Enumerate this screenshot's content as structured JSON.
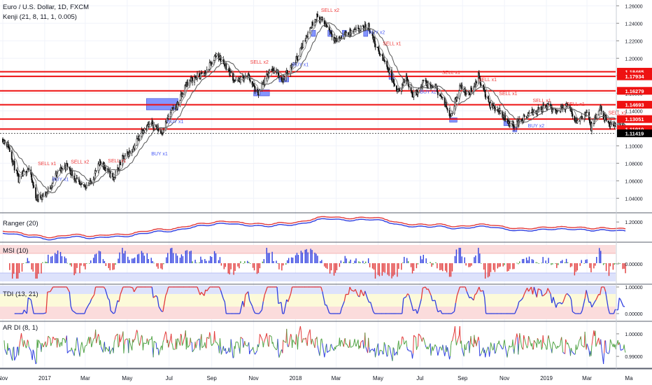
{
  "title": "Euro / U.S. Dollar, 1D, FXCM",
  "indicator_label": "Kenji (21, 8, 11, 1, 0.005)",
  "colors": {
    "candle": "#111111",
    "ma": "#555555",
    "level": "#ee1111",
    "sell": "#ef3b3b",
    "buy": "#4a5cf5",
    "box": "#6f83ff",
    "blue": "#2f3fe0",
    "red": "#e23a3a",
    "green": "#52a447",
    "grid": "#f0f3fa",
    "band_red": "#fbdcdc",
    "band_blue": "#dde2fb",
    "band_yellow": "#fcfad9"
  },
  "chart_data": [
    {
      "type": "candlestick",
      "name": "Euro / U.S. Dollar",
      "x_range": [
        "2016-11-01",
        "2019-04-30"
      ],
      "ylim": [
        1.025,
        1.265
      ],
      "y_ticks": [
        {
          "value": 1.26,
          "label": "1.26000"
        },
        {
          "value": 1.24,
          "label": "1.24000"
        },
        {
          "value": 1.22,
          "label": "1.22000"
        },
        {
          "value": 1.2,
          "label": "1.20000"
        },
        {
          "value": 1.18,
          "label": "1.18000"
        },
        {
          "value": 1.16,
          "label": "1.16000"
        },
        {
          "value": 1.14,
          "label": "1.14000"
        },
        {
          "value": 1.12,
          "label": "1.12000"
        },
        {
          "value": 1.1,
          "label": "1.10000"
        },
        {
          "value": 1.08,
          "label": "1.08000"
        },
        {
          "value": 1.06,
          "label": "1.06000"
        },
        {
          "value": 1.04,
          "label": "1.04000"
        }
      ],
      "levels": [
        {
          "value": 1.18465,
          "label": "1.18465"
        },
        {
          "value": 1.17934,
          "label": "1.17934"
        },
        {
          "value": 1.16279,
          "label": "1.16279"
        },
        {
          "value": 1.14693,
          "label": "1.14693"
        },
        {
          "value": 1.13051,
          "label": "1.13051"
        },
        {
          "value": 1.1191,
          "label": "1.11910"
        }
      ],
      "last_price": {
        "value": 1.11419,
        "label": "1.11419"
      },
      "close_path": [
        [
          "2016-11-01",
          1.108
        ],
        [
          "2016-11-09",
          1.1
        ],
        [
          "2016-11-24",
          1.06
        ],
        [
          "2016-12-08",
          1.075
        ],
        [
          "2016-12-20",
          1.04
        ],
        [
          "2017-01-03",
          1.045
        ],
        [
          "2017-01-20",
          1.07
        ],
        [
          "2017-02-02",
          1.078
        ],
        [
          "2017-02-22",
          1.053
        ],
        [
          "2017-03-08",
          1.057
        ],
        [
          "2017-03-24",
          1.082
        ],
        [
          "2017-04-11",
          1.062
        ],
        [
          "2017-04-24",
          1.085
        ],
        [
          "2017-05-08",
          1.095
        ],
        [
          "2017-05-24",
          1.12
        ],
        [
          "2017-06-07",
          1.125
        ],
        [
          "2017-06-20",
          1.115
        ],
        [
          "2017-07-03",
          1.138
        ],
        [
          "2017-07-14",
          1.148
        ],
        [
          "2017-07-27",
          1.172
        ],
        [
          "2017-08-08",
          1.178
        ],
        [
          "2017-08-23",
          1.183
        ],
        [
          "2017-09-08",
          1.205
        ],
        [
          "2017-09-21",
          1.192
        ],
        [
          "2017-10-06",
          1.173
        ],
        [
          "2017-10-24",
          1.18
        ],
        [
          "2017-11-07",
          1.158
        ],
        [
          "2017-11-27",
          1.19
        ],
        [
          "2017-12-13",
          1.176
        ],
        [
          "2018-01-03",
          1.2
        ],
        [
          "2018-01-16",
          1.225
        ],
        [
          "2018-01-31",
          1.248
        ],
        [
          "2018-02-15",
          1.238
        ],
        [
          "2018-03-01",
          1.22
        ],
        [
          "2018-03-16",
          1.228
        ],
        [
          "2018-04-02",
          1.232
        ],
        [
          "2018-04-17",
          1.237
        ],
        [
          "2018-04-30",
          1.21
        ],
        [
          "2018-05-15",
          1.19
        ],
        [
          "2018-05-29",
          1.16
        ],
        [
          "2018-06-11",
          1.178
        ],
        [
          "2018-06-21",
          1.157
        ],
        [
          "2018-07-06",
          1.172
        ],
        [
          "2018-07-25",
          1.165
        ],
        [
          "2018-08-15",
          1.135
        ],
        [
          "2018-08-28",
          1.168
        ],
        [
          "2018-09-10",
          1.158
        ],
        [
          "2018-09-24",
          1.18
        ],
        [
          "2018-10-09",
          1.148
        ],
        [
          "2018-10-24",
          1.14
        ],
        [
          "2018-11-12",
          1.123
        ],
        [
          "2018-11-27",
          1.13
        ],
        [
          "2018-12-12",
          1.138
        ],
        [
          "2019-01-02",
          1.145
        ],
        [
          "2019-01-16",
          1.14
        ],
        [
          "2019-01-31",
          1.146
        ],
        [
          "2019-02-14",
          1.128
        ],
        [
          "2019-03-01",
          1.138
        ],
        [
          "2019-03-07",
          1.12
        ],
        [
          "2019-03-20",
          1.143
        ],
        [
          "2019-04-02",
          1.122
        ],
        [
          "2019-04-17",
          1.128
        ],
        [
          "2019-04-26",
          1.115
        ]
      ],
      "zones": [
        {
          "x0": "2017-05-29",
          "x1": "2017-07-14",
          "y0": 1.141,
          "y1": 1.154
        },
        {
          "x0": "2017-11-01",
          "x1": "2017-11-24",
          "y0": 1.157,
          "y1": 1.164
        },
        {
          "x0": "2017-12-08",
          "x1": "2017-12-22",
          "y0": 1.173,
          "y1": 1.179
        },
        {
          "x0": "2018-01-24",
          "x1": "2018-01-30",
          "y0": 1.225,
          "y1": 1.232
        },
        {
          "x0": "2018-02-17",
          "x1": "2018-02-23",
          "y0": 1.225,
          "y1": 1.232
        },
        {
          "x0": "2018-03-10",
          "x1": "2018-03-16",
          "y0": 1.225,
          "y1": 1.232
        },
        {
          "x0": "2018-04-10",
          "x1": "2018-04-16",
          "y0": 1.225,
          "y1": 1.232
        },
        {
          "x0": "2018-05-17",
          "x1": "2018-05-24",
          "y0": 1.176,
          "y1": 1.182
        },
        {
          "x0": "2018-08-13",
          "x1": "2018-08-24",
          "y0": 1.127,
          "y1": 1.132
        },
        {
          "x0": "2018-10-31",
          "x1": "2018-11-07",
          "y0": 1.123,
          "y1": 1.128
        },
        {
          "x0": "2018-11-13",
          "x1": "2018-11-19",
          "y0": 1.116,
          "y1": 1.121
        }
      ],
      "signals": [
        {
          "x": "2016-12-22",
          "y": 1.078,
          "text": "SELL x1",
          "side": "sell"
        },
        {
          "x": "2017-02-08",
          "y": 1.08,
          "text": "SELL x2",
          "side": "sell"
        },
        {
          "x": "2017-01-12",
          "y": 1.06,
          "text": "BUY x1",
          "side": "buy"
        },
        {
          "x": "2017-04-03",
          "y": 1.081,
          "text": "SELL x1",
          "side": "sell"
        },
        {
          "x": "2017-06-05",
          "y": 1.089,
          "text": "BUY x1",
          "side": "buy"
        },
        {
          "x": "2017-06-28",
          "y": 1.126,
          "text": "BUY x1",
          "side": "buy"
        },
        {
          "x": "2017-10-27",
          "y": 1.194,
          "text": "SELL x2",
          "side": "sell"
        },
        {
          "x": "2017-12-27",
          "y": 1.191,
          "text": "BUY x1",
          "side": "buy"
        },
        {
          "x": "2018-02-07",
          "y": 1.253,
          "text": "SELL x2",
          "side": "sell"
        },
        {
          "x": "2018-04-17",
          "y": 1.228,
          "text": "BUY x2",
          "side": "buy"
        },
        {
          "x": "2018-05-08",
          "y": 1.215,
          "text": "SELL x1",
          "side": "sell"
        },
        {
          "x": "2018-08-02",
          "y": 1.182,
          "text": "SELL x1",
          "side": "sell"
        },
        {
          "x": "2018-07-01",
          "y": 1.16,
          "text": "BUY x2",
          "side": "buy"
        },
        {
          "x": "2018-09-24",
          "y": 1.174,
          "text": "SELL x1",
          "side": "sell"
        },
        {
          "x": "2018-10-24",
          "y": 1.158,
          "text": "SELL x1",
          "side": "sell"
        },
        {
          "x": "2018-12-12",
          "y": 1.15,
          "text": "SELL x1",
          "side": "sell"
        },
        {
          "x": "2019-01-30",
          "y": 1.146,
          "text": "SELL x1",
          "side": "sell"
        },
        {
          "x": "2018-12-05",
          "y": 1.121,
          "text": "BUY x2",
          "side": "buy"
        },
        {
          "x": "2019-04-01",
          "y": 1.136,
          "text": "SELL x1",
          "side": "sell"
        }
      ]
    },
    {
      "type": "line",
      "name": "Ranger (20)",
      "label": "Ranger (20)",
      "y_ticks": [
        {
          "value": 1.2,
          "label": "1.20000"
        }
      ],
      "series": [
        {
          "color": "red"
        },
        {
          "color": "blue"
        }
      ]
    },
    {
      "type": "bar",
      "name": "MSI (10)",
      "label": "MSI (10)",
      "y_ticks": [
        {
          "value": 0,
          "label": "0.00000"
        }
      ]
    },
    {
      "type": "line",
      "name": "TDI (13, 21)",
      "label": "TDI (13, 21)",
      "y_ticks": [
        {
          "value": 1,
          "label": "1.00000"
        },
        {
          "value": 0,
          "label": "0.00000"
        }
      ]
    },
    {
      "type": "line",
      "name": "AR DI (8, 1)",
      "label": "AR DI (8, 1)",
      "y_ticks": [
        {
          "value": 1,
          "label": "1.00000"
        },
        {
          "value": 0.99,
          "label": "0.99000"
        }
      ]
    }
  ],
  "x_axis": {
    "ticks": [
      {
        "date": "2016-11-01",
        "label": "Nov"
      },
      {
        "date": "2017-01-01",
        "label": "2017"
      },
      {
        "date": "2017-03-01",
        "label": "Mar"
      },
      {
        "date": "2017-05-01",
        "label": "May"
      },
      {
        "date": "2017-07-01",
        "label": "Jul"
      },
      {
        "date": "2017-09-01",
        "label": "Sep"
      },
      {
        "date": "2017-11-01",
        "label": "Nov"
      },
      {
        "date": "2018-01-01",
        "label": "2018"
      },
      {
        "date": "2018-03-01",
        "label": "Mar"
      },
      {
        "date": "2018-05-01",
        "label": "May"
      },
      {
        "date": "2018-07-01",
        "label": "Jul"
      },
      {
        "date": "2018-09-01",
        "label": "Sep"
      },
      {
        "date": "2018-11-01",
        "label": "Nov"
      },
      {
        "date": "2019-01-01",
        "label": "2019"
      },
      {
        "date": "2019-03-01",
        "label": "Mar"
      },
      {
        "date": "2019-05-01",
        "label": "Ma"
      }
    ]
  }
}
